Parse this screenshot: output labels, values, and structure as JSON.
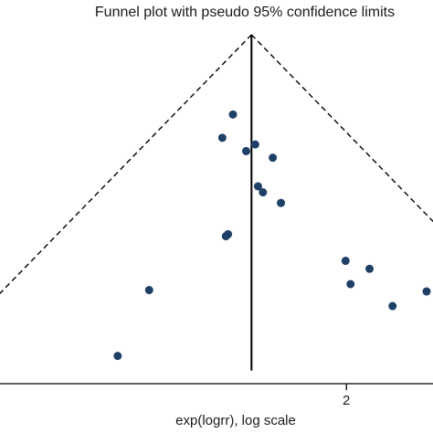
{
  "chart_data": {
    "type": "scatter",
    "title": "Funnel plot with pseudo 95% confidence limits",
    "xlabel": "exp(logrr), log scale",
    "ylabel": "",
    "x_scale": "log",
    "xlim": [
      0.7,
      2.6
    ],
    "ylim": [
      0.515,
      0.01
    ],
    "x_ticks": [
      2
    ],
    "x_tick_labels": [
      "2"
    ],
    "pooled_estimate": 1.5,
    "funnel": {
      "style": "dashed",
      "color": "#000000",
      "apex_se": 0.0
    },
    "grid": false,
    "legend": "none",
    "marker_color": "#1e3f66",
    "points": [
      {
        "x": 1.418,
        "se": 0.12
      },
      {
        "x": 1.373,
        "se": 0.155
      },
      {
        "x": 1.517,
        "se": 0.165
      },
      {
        "x": 1.476,
        "se": 0.175
      },
      {
        "x": 1.6,
        "se": 0.185
      },
      {
        "x": 1.53,
        "se": 0.228
      },
      {
        "x": 1.553,
        "se": 0.237
      },
      {
        "x": 1.64,
        "se": 0.253
      },
      {
        "x": 1.397,
        "se": 0.3
      },
      {
        "x": 1.388,
        "se": 0.303
      },
      {
        "x": 1.995,
        "se": 0.34
      },
      {
        "x": 2.145,
        "se": 0.352
      },
      {
        "x": 2.025,
        "se": 0.375
      },
      {
        "x": 1.1,
        "se": 0.384
      },
      {
        "x": 2.55,
        "se": 0.386
      },
      {
        "x": 2.3,
        "se": 0.408
      },
      {
        "x": 1.0,
        "se": 0.483
      }
    ]
  }
}
